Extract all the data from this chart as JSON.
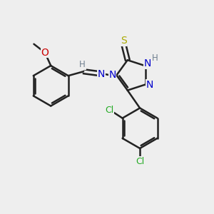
{
  "background_color": "#eeeeee",
  "bond_color": "#222222",
  "bond_width": 1.8,
  "atom_colors": {
    "C": "#222222",
    "H": "#708090",
    "N": "#0000cc",
    "O": "#cc0000",
    "S": "#aaaa00",
    "Cl": "#22aa22"
  },
  "font_size_atom": 10,
  "font_size_H": 8.5,
  "font_size_Cl": 9
}
